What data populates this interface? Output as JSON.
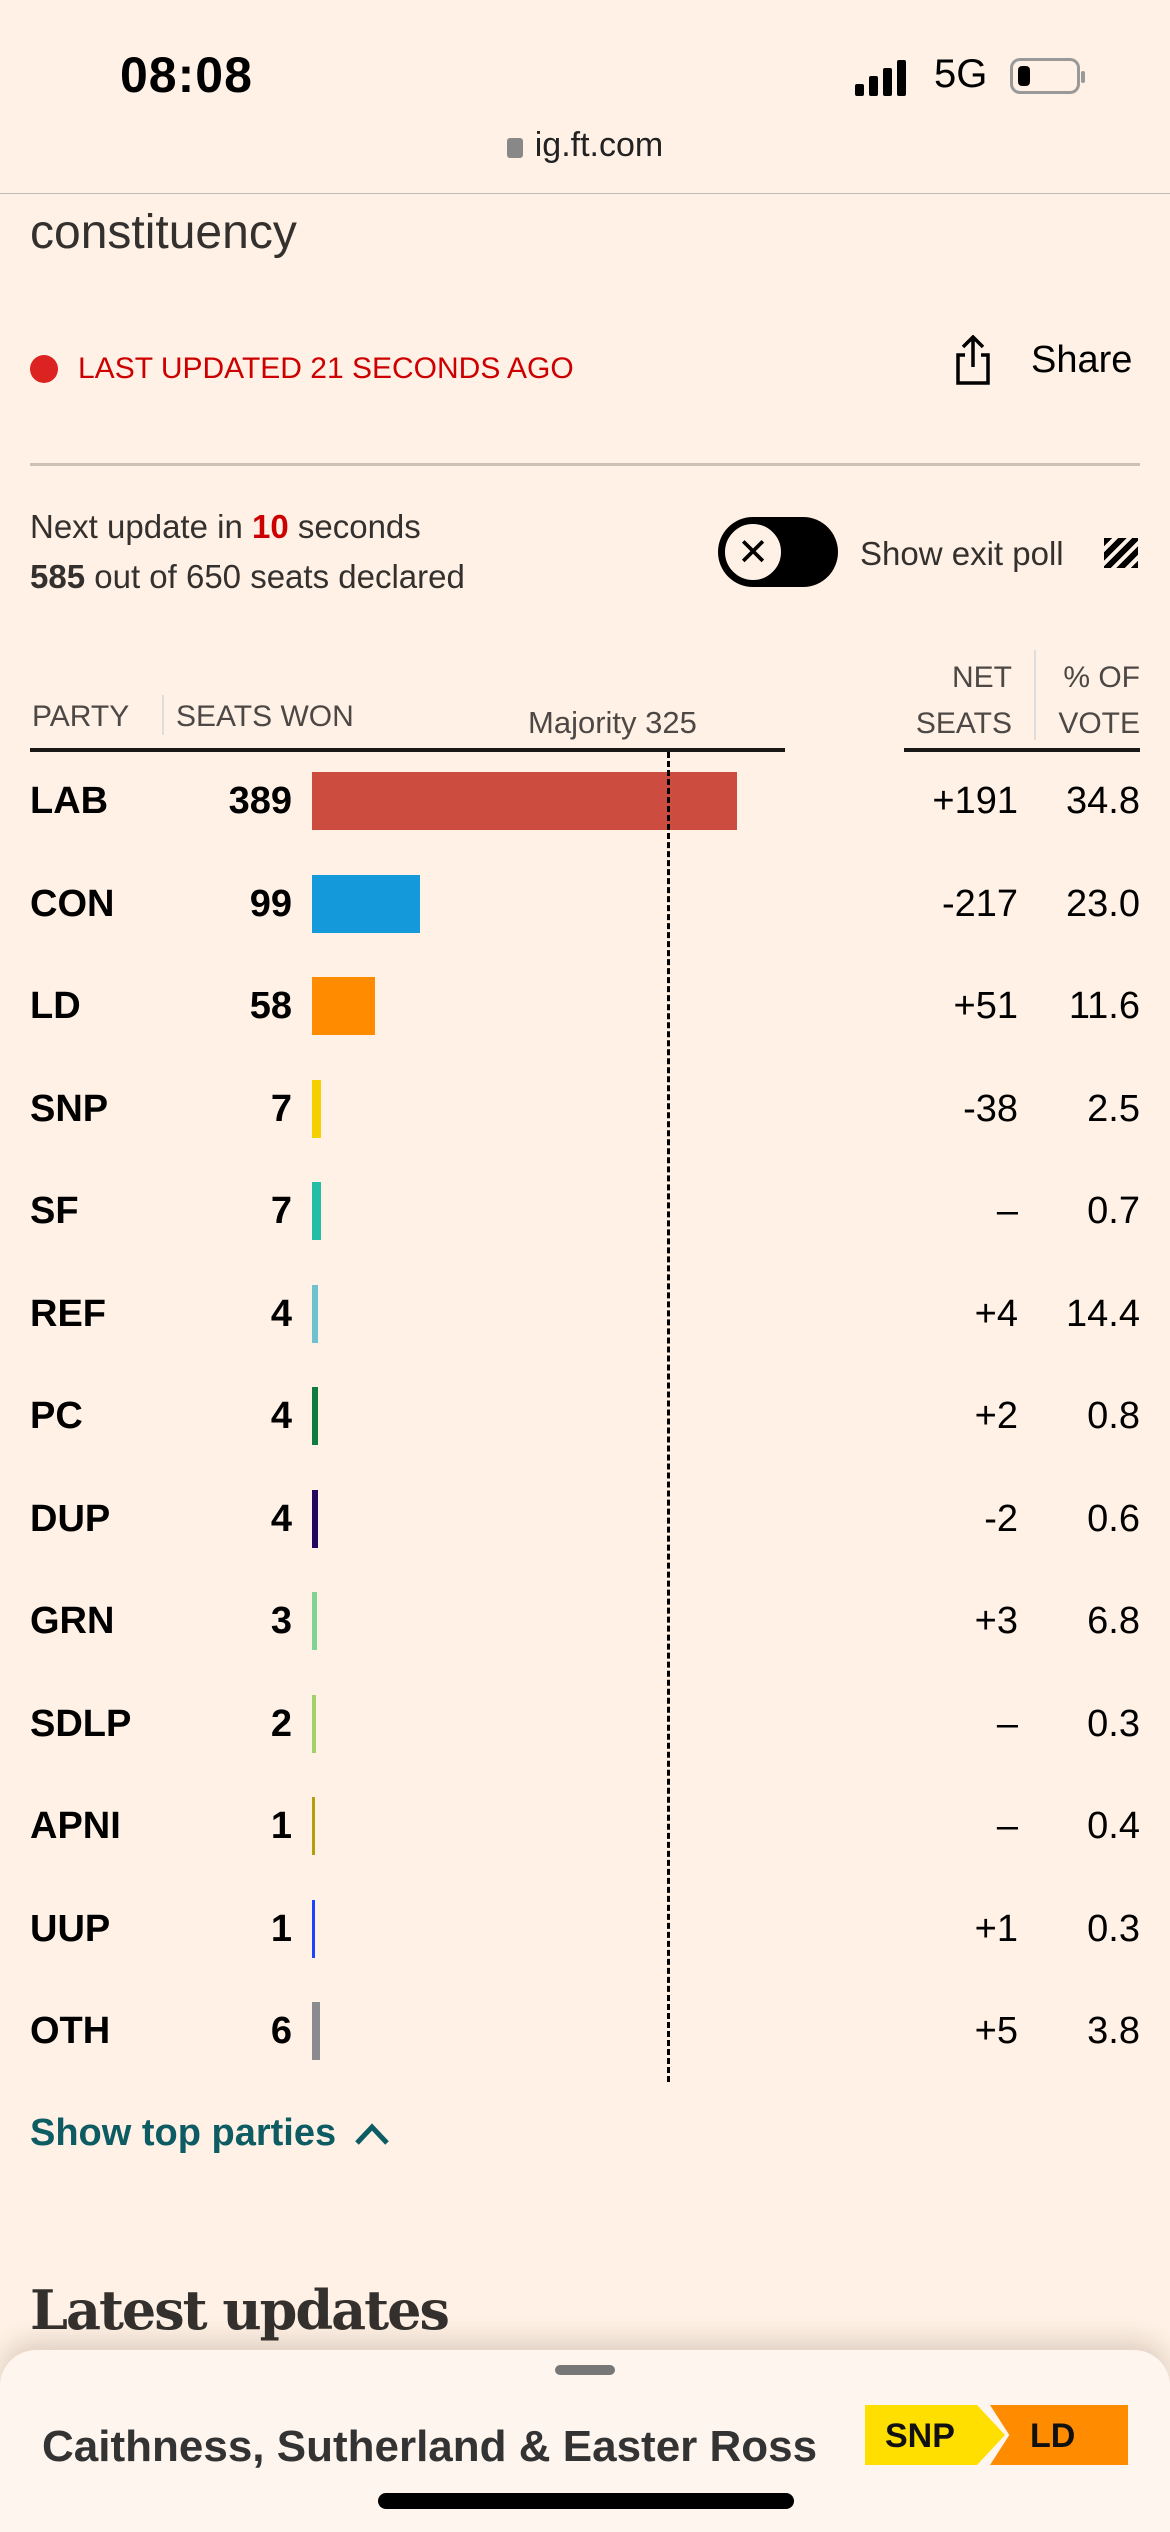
{
  "status_bar": {
    "time": "08:08",
    "network": "5G",
    "battery_level": 0.2
  },
  "browser": {
    "url": "ig.ft.com"
  },
  "headline_fragment": "constituency",
  "live": {
    "label": "LAST UPDATED 21 SECONDS AGO",
    "color": "#cc0000"
  },
  "share": {
    "label": "Share"
  },
  "update": {
    "prefix": "Next update in",
    "seconds": "10",
    "suffix": "seconds"
  },
  "declared": {
    "count": "585",
    "text": "out of 650 seats declared"
  },
  "exit_poll": {
    "label": "Show exit poll",
    "enabled": false
  },
  "chart_data": {
    "type": "bar",
    "orientation": "horizontal",
    "columns": {
      "party": "PARTY",
      "seats": "SEATS WON",
      "net_line1": "NET",
      "net_line2": "SEATS",
      "vote_line1": "% OF",
      "vote_line2": "VOTE"
    },
    "majority_label": "Majority 325",
    "majority": 325,
    "xlim": [
      0,
      650
    ],
    "rows": [
      {
        "party": "LAB",
        "seats": 389,
        "net": "+191",
        "vote": "34.8",
        "color": "#cc4c3f"
      },
      {
        "party": "CON",
        "seats": 99,
        "net": "-217",
        "vote": "23.0",
        "color": "#1499db"
      },
      {
        "party": "LD",
        "seats": 58,
        "net": "+51",
        "vote": "11.6",
        "color": "#ff8b00"
      },
      {
        "party": "SNP",
        "seats": 7,
        "net": "-38",
        "vote": "2.5",
        "color": "#f5d000"
      },
      {
        "party": "SF",
        "seats": 7,
        "net": "–",
        "vote": "0.7",
        "color": "#21bda6"
      },
      {
        "party": "REF",
        "seats": 4,
        "net": "+4",
        "vote": "14.4",
        "color": "#6ec1cf"
      },
      {
        "party": "PC",
        "seats": 4,
        "net": "+2",
        "vote": "0.8",
        "color": "#0f7b3e"
      },
      {
        "party": "DUP",
        "seats": 4,
        "net": "-2",
        "vote": "0.6",
        "color": "#22075e"
      },
      {
        "party": "GRN",
        "seats": 3,
        "net": "+3",
        "vote": "6.8",
        "color": "#7fd493"
      },
      {
        "party": "SDLP",
        "seats": 2,
        "net": "–",
        "vote": "0.3",
        "color": "#a1d16b"
      },
      {
        "party": "APNI",
        "seats": 1,
        "net": "–",
        "vote": "0.4",
        "color": "#b89d0c"
      },
      {
        "party": "UUP",
        "seats": 1,
        "net": "+1",
        "vote": "0.3",
        "color": "#1a44ff"
      },
      {
        "party": "OTH",
        "seats": 6,
        "net": "+5",
        "vote": "3.8",
        "color": "#8a8a8f"
      }
    ]
  },
  "toggle_parties": {
    "label": "Show top parties"
  },
  "latest": {
    "title": "Latest updates"
  },
  "sheet": {
    "constituency": "Caithness, Sutherland & Easter Ross",
    "from_party": "SNP",
    "to_party": "LD",
    "from_color": "#ffdf00",
    "to_color": "#ff8b00"
  }
}
